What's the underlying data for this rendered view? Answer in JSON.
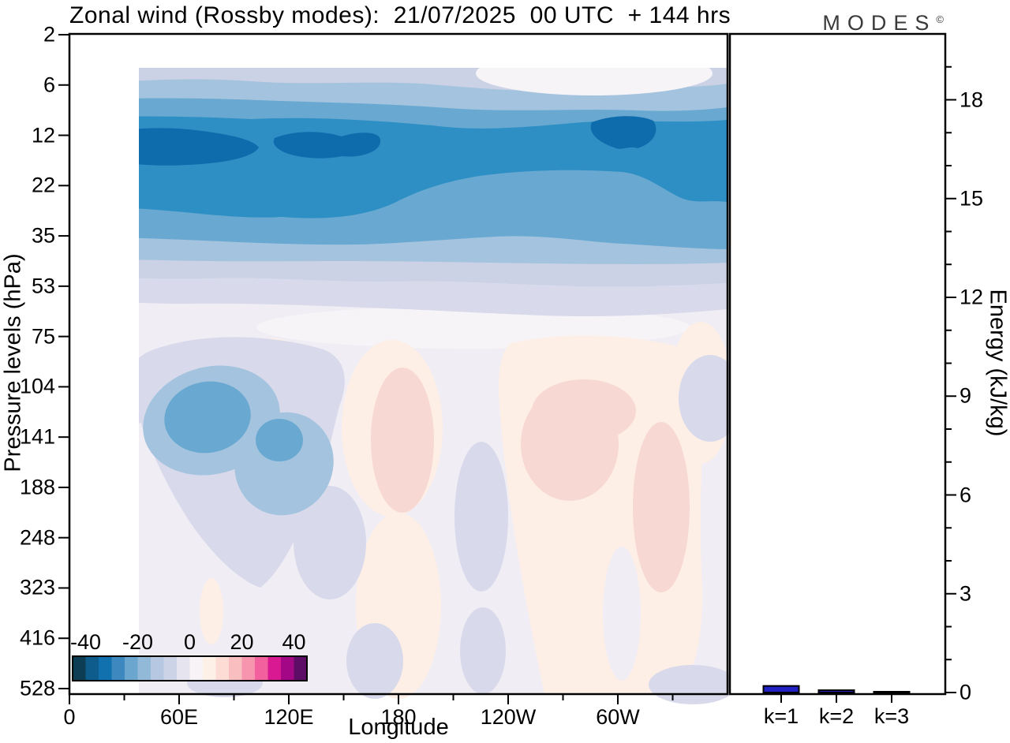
{
  "title": "Zonal wind (Rossby modes):  21/07/2025  00 UTC  + 144 hrs",
  "logo": {
    "text": "MODES",
    "mark": "©"
  },
  "axes": {
    "pressure": {
      "label": "Pressure levels (hPa)",
      "ticks": [
        "2",
        "6",
        "12",
        "22",
        "35",
        "53",
        "75",
        "104",
        "141",
        "188",
        "248",
        "323",
        "416",
        "528"
      ]
    },
    "longitude": {
      "label": "Longitude",
      "ticks": [
        "0",
        "60E",
        "120E",
        "180",
        "120W",
        "60W"
      ]
    },
    "energy": {
      "label": "Energy (kJ/kg)",
      "ticks": [
        "0",
        "3",
        "6",
        "9",
        "12",
        "15",
        "18"
      ],
      "max": 20
    }
  },
  "colorbar": {
    "tick_labels": [
      "-40",
      "-20",
      "0",
      "20",
      "40"
    ],
    "min": -45,
    "max": 45,
    "step": 5,
    "colors": [
      "#0d3d55",
      "#0e5c8b",
      "#1171af",
      "#3d89bf",
      "#6ba6ce",
      "#93b9d8",
      "#b6c8e1",
      "#cdd3e6",
      "#e5e4ef",
      "#f7f3f6",
      "#fdf0e7",
      "#fcdcd4",
      "#f9bec0",
      "#f795ae",
      "#f2609e",
      "#d81991",
      "#a30786",
      "#5d0d66"
    ]
  },
  "energy_bars": {
    "categories": [
      "k=1",
      "k=2",
      "k=3"
    ],
    "values": [
      0.2,
      0.07,
      0.02
    ],
    "bar_color": "#2222c4",
    "outline": "#000000"
  },
  "palette": {
    "L0": "#cbd2e5",
    "L1": "#a4c3de",
    "L2": "#69a9d1",
    "L3": "#2e8fc4",
    "L4": "#0e6cad",
    "V": "#d8daeb",
    "BG": "#f0edf4",
    "W": "#f7f4f8",
    "P1": "#fdefe6",
    "P2": "#f8d8d2",
    "frame": "#000000"
  },
  "chart_data": [
    {
      "type": "heatmap",
      "subtype": "filled_contour",
      "title": "Zonal wind (Rossby modes):  21/07/2025  00 UTC  + 144 hrs",
      "xlabel": "Longitude",
      "ylabel": "Pressure levels (hPa)",
      "x_tick_labels": [
        "0",
        "60E",
        "120E",
        "180",
        "120W",
        "60W"
      ],
      "x_minor_ticks_deg": [
        30,
        90,
        150,
        210,
        270,
        330
      ],
      "y_tick_labels": [
        "2",
        "6",
        "12",
        "22",
        "35",
        "53",
        "75",
        "104",
        "141",
        "188",
        "248",
        "323",
        "416",
        "528"
      ],
      "colorbar": {
        "labels": [
          "-40",
          "-20",
          "0",
          "20",
          "40"
        ],
        "min": -45,
        "max": 45,
        "step": 5
      },
      "legend_position": "colorbar inset bottom-left",
      "grid": false,
      "longitudes_deg": [
        0,
        30,
        60,
        90,
        120,
        150,
        180,
        210,
        240,
        270,
        300,
        330
      ],
      "pressure_levels_hPa": [
        2,
        6,
        12,
        22,
        35,
        53,
        75,
        104,
        141,
        188,
        248,
        323,
        416,
        528
      ],
      "approx_field_note": "zonal wind estimated from contour shading, rows = pressure levels, cols = longitudes",
      "approx_field": [
        [
          -7,
          -7,
          -8,
          -7,
          -7,
          -6,
          -5,
          -6,
          -7,
          -6,
          -7,
          -7
        ],
        [
          -12,
          -13,
          -12,
          -13,
          -12,
          -11,
          -10,
          -11,
          -12,
          -13,
          -12,
          -11
        ],
        [
          -32,
          -33,
          -30,
          -31,
          -32,
          -27,
          -25,
          -26,
          -27,
          -32,
          -28,
          -26
        ],
        [
          -25,
          -26,
          -24,
          -25,
          -23,
          -22,
          -24,
          -25,
          -24,
          -23,
          -22,
          -23
        ],
        [
          -13,
          -14,
          -13,
          -12,
          -13,
          -12,
          -12,
          -13,
          -14,
          -13,
          -12,
          -12
        ],
        [
          -7,
          -8,
          -7,
          -7,
          -6,
          -6,
          -7,
          -7,
          -8,
          -7,
          -6,
          -6
        ],
        [
          -3,
          -4,
          -6,
          -5,
          -4,
          -2,
          -1,
          -2,
          -2,
          -2,
          -3,
          -2
        ],
        [
          -3,
          -8,
          -16,
          -12,
          -7,
          -2,
          6,
          3,
          4,
          6,
          4,
          2
        ],
        [
          -2,
          -6,
          -17,
          -14,
          -8,
          -3,
          8,
          2,
          6,
          9,
          7,
          3
        ],
        [
          -2,
          -4,
          -9,
          -11,
          -6,
          -3,
          4,
          2,
          4,
          8,
          9,
          4
        ],
        [
          1,
          -2,
          -6,
          -7,
          -4,
          -2,
          3,
          2,
          3,
          6,
          7,
          3
        ],
        [
          3,
          2,
          -3,
          -4,
          -3,
          -2,
          2,
          1,
          2,
          4,
          5,
          2
        ],
        [
          2,
          3,
          -1,
          -2,
          -2,
          -3,
          2,
          1,
          2,
          3,
          3,
          2
        ],
        [
          2,
          2,
          -1,
          -2,
          -1,
          -3,
          3,
          1,
          2,
          3,
          2,
          2
        ]
      ]
    },
    {
      "type": "bar",
      "categories": [
        "k=1",
        "k=2",
        "k=3"
      ],
      "values": [
        0.2,
        0.07,
        0.02
      ],
      "title": "",
      "xlabel": "",
      "ylabel": "Energy (kJ/kg)",
      "ylim": [
        0,
        20
      ],
      "yticks": [
        0,
        3,
        6,
        9,
        12,
        15,
        18
      ],
      "grid": false,
      "bar_color": "#2222c4"
    }
  ]
}
